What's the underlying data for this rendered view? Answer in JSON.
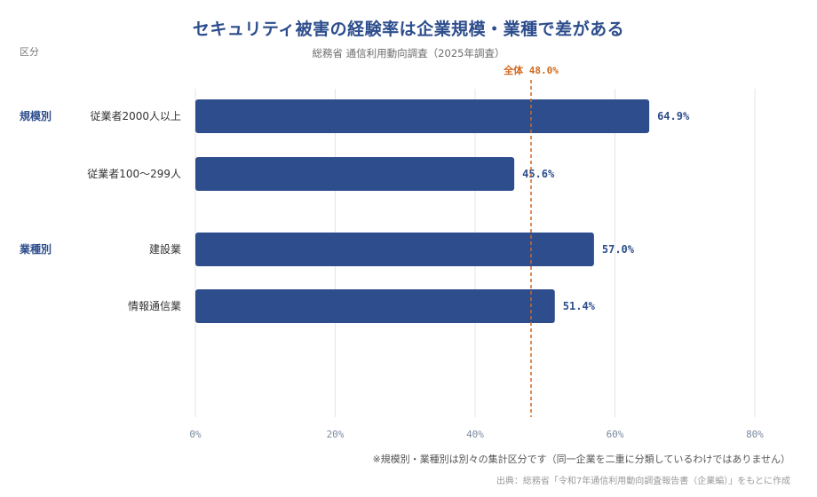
{
  "title": "セキュリティ被害の経験率は企業規模・業種で差がある",
  "subtitle": "総務省 通信利用動向調査（2025年調査）",
  "category_header": "区分",
  "note": "※規模別・業種別は別々の集計区分です（同一企業を二重に分類しているわけではありません）",
  "source": "出典：総務省「令和7年通信利用動向調査報告書（企業編）」をもとに作成",
  "colors": {
    "bar": "#2d4d8c",
    "reference": "#d2691e",
    "group_label": "#2d4d8c",
    "value_label": "#2d4d8c",
    "grid": "#e4e4e4",
    "tick": "#7a8aa0"
  },
  "chart_data": {
    "type": "bar",
    "orientation": "horizontal",
    "groups": [
      {
        "label": "規模別",
        "categories": [
          "従業者2000人以上",
          "従業者100〜299人"
        ],
        "values": [
          64.9,
          45.6
        ]
      },
      {
        "label": "業種別",
        "categories": [
          "建設業",
          "情報通信業"
        ],
        "values": [
          57.0,
          51.4
        ]
      }
    ],
    "value_labels": [
      "64.9%",
      "45.6%",
      "57.0%",
      "51.4%"
    ],
    "reference_line": {
      "label": "全体 48.0%",
      "value": 48.0,
      "style": "dashed"
    },
    "xlim": [
      0,
      80
    ],
    "xticks": [
      0,
      20,
      40,
      60,
      80
    ],
    "xtick_labels": [
      "0%",
      "20%",
      "40%",
      "60%",
      "80%"
    ],
    "grid": true
  }
}
